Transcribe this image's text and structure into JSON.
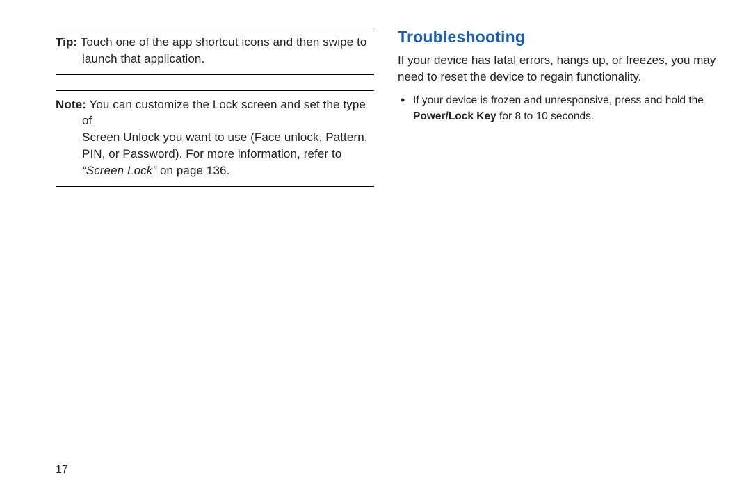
{
  "colors": {
    "heading": "#1a5fb4",
    "text": "#222222",
    "rule": "#000000",
    "background": "#ffffff"
  },
  "left": {
    "tip": {
      "label": "Tip:",
      "body_line1": " Touch one of the app shortcut icons and then swipe to",
      "body_line2": "launch that application."
    },
    "note": {
      "label": "Note:",
      "body_line1": " You can customize the Lock screen and set the type of",
      "body_line2": "Screen Unlock you want to use (Face unlock, Pattern,",
      "body_line3": "PIN, or Password). For more information, refer to",
      "ref_italic": "“Screen Lock”",
      "ref_tail": " on page 136."
    }
  },
  "right": {
    "heading": "Troubleshooting",
    "intro": "If your device has fatal errors, hangs up, or freezes, you may need to reset the device to regain functionality.",
    "bullet1_pre": "If your device is frozen and unresponsive, press and hold the ",
    "bullet1_bold": "Power/Lock Key",
    "bullet1_post": " for 8 to 10 seconds."
  },
  "page_number": "17"
}
